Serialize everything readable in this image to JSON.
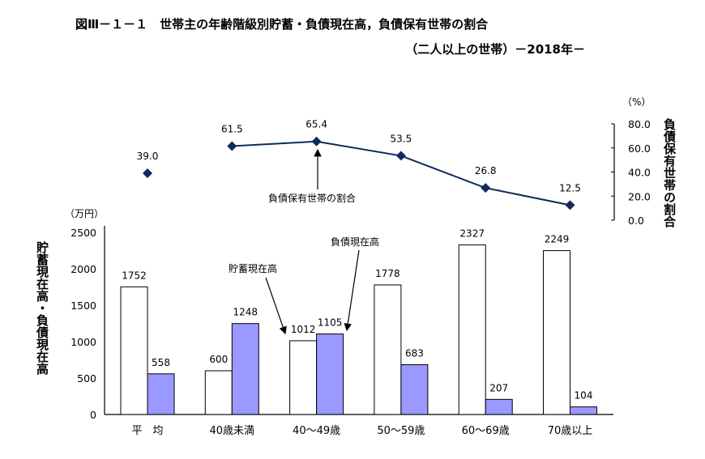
{
  "title": "図Ⅲ－１－１　世帯主の年齢階級別貯蓄・負債現在高，負債保有世帯の割合",
  "subtitle": "（二人以上の世帯）－2018年－",
  "chart_data": [
    {
      "type": "bar",
      "categories": [
        "平　均",
        "40歳未満",
        "40～49歳",
        "50～59歳",
        "60～69歳",
        "70歳以上"
      ],
      "series": [
        {
          "name": "貯蓄現在高",
          "values": [
            1752,
            600,
            1012,
            1778,
            2327,
            2249
          ],
          "color": "#ffffff"
        },
        {
          "name": "負債現在高",
          "values": [
            558,
            1248,
            1105,
            683,
            207,
            104
          ],
          "color": "#9999ff"
        }
      ],
      "ylabel": "貯蓄現在高・負債現在高",
      "yunit": "（万円）",
      "ylim": [
        0,
        2500
      ],
      "yticks": [
        "0",
        "500",
        "1000",
        "1500",
        "2000",
        "2500"
      ],
      "grid": false
    },
    {
      "type": "line",
      "categories": [
        "平　均",
        "40歳未満",
        "40～49歳",
        "50～59歳",
        "60～69歳",
        "70歳以上"
      ],
      "series": [
        {
          "name": "負債保有世帯の割合",
          "values": [
            39.0,
            61.5,
            65.4,
            53.5,
            26.8,
            12.5
          ],
          "labels": [
            "39.0",
            "61.5",
            "65.4",
            "53.5",
            "26.8",
            "12.5"
          ],
          "color": "#0f2a5e",
          "connected_from_index": 1
        }
      ],
      "ylabel": "負債保有世帯の割合",
      "yunit": "（%）",
      "ylim": [
        0,
        80
      ],
      "yticks": [
        "0.0",
        "20.0",
        "40.0",
        "60.0",
        "80.0"
      ],
      "axis_position": "right"
    }
  ],
  "annotations": {
    "savings": "貯蓄現在高",
    "debt": "負債現在高",
    "ratio": "負債保有世帯の割合"
  }
}
